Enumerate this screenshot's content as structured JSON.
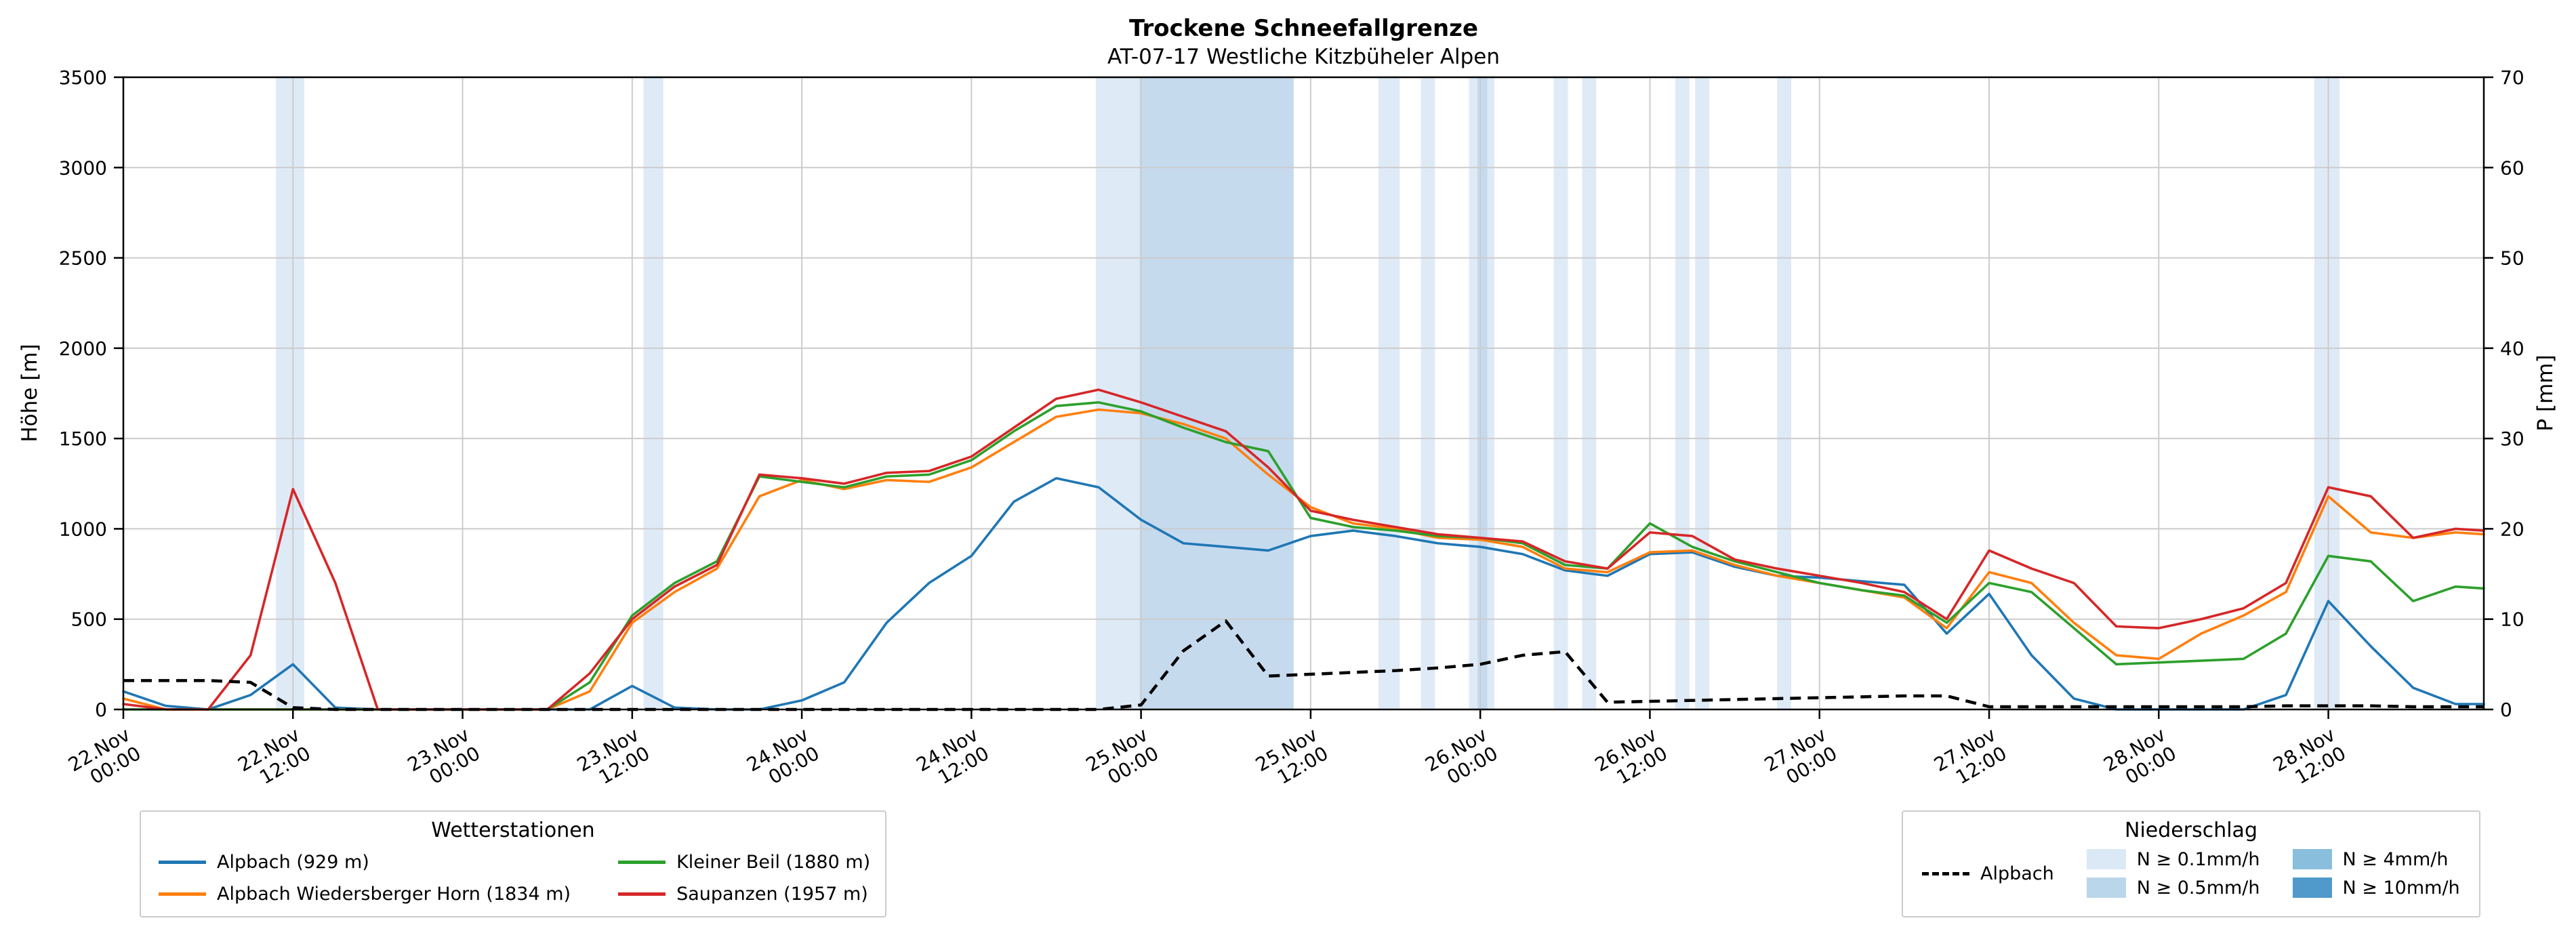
{
  "title": "Trockene Schneefallgrenze",
  "subtitle": "AT-07-17 Westliche Kitzbüheler Alpen",
  "axes": {
    "left_label": "Höhe [m]",
    "right_label": "P [mm]"
  },
  "legend_stations": {
    "title": "Wetterstationen",
    "items": [
      {
        "label": "Alpbach (929 m)",
        "color": "#1f77b4"
      },
      {
        "label": "Alpbach Wiedersberger Horn (1834 m)",
        "color": "#ff7f0e"
      },
      {
        "label": "Kleiner Beil (1880 m)",
        "color": "#2ca02c"
      },
      {
        "label": "Saupanzen (1957 m)",
        "color": "#d62728"
      }
    ]
  },
  "legend_precip": {
    "title": "Niederschlag",
    "line": {
      "label": "Alpbach",
      "color": "#000000"
    },
    "patches": [
      {
        "label": "N ≥ 0.1mm/h",
        "color": "#dbe9f6"
      },
      {
        "label": "N ≥ 0.5mm/h",
        "color": "#bad6eb"
      },
      {
        "label": "N ≥ 4mm/h",
        "color": "#89bedc"
      },
      {
        "label": "N ≥ 10mm/h",
        "color": "#4f9acb"
      }
    ]
  },
  "chart_data": {
    "type": "line",
    "title": "Trockene Schneefallgrenze",
    "subtitle": "AT-07-17 Westliche Kitzbüheler Alpen",
    "xlabel": "",
    "ylabel_left": "Höhe [m]",
    "ylabel_right": "P [mm]",
    "x_unit": "hours since 22.Nov 00:00",
    "x_range": [
      0,
      167
    ],
    "ylim_left": [
      0,
      3500
    ],
    "ylim_right": [
      0,
      70
    ],
    "grid": true,
    "left_ticks": [
      0,
      500,
      1000,
      1500,
      2000,
      2500,
      3000,
      3500
    ],
    "right_ticks": [
      0,
      10,
      20,
      30,
      40,
      50,
      60,
      70
    ],
    "x_ticks": [
      {
        "t": 0,
        "label": "22.Nov\n00:00"
      },
      {
        "t": 12,
        "label": "22.Nov\n12:00"
      },
      {
        "t": 24,
        "label": "23.Nov\n00:00"
      },
      {
        "t": 36,
        "label": "23.Nov\n12:00"
      },
      {
        "t": 48,
        "label": "24.Nov\n00:00"
      },
      {
        "t": 60,
        "label": "24.Nov\n12:00"
      },
      {
        "t": 72,
        "label": "25.Nov\n00:00"
      },
      {
        "t": 84,
        "label": "25.Nov\n12:00"
      },
      {
        "t": 96,
        "label": "26.Nov\n00:00"
      },
      {
        "t": 108,
        "label": "26.Nov\n12:00"
      },
      {
        "t": 120,
        "label": "27.Nov\n00:00"
      },
      {
        "t": 132,
        "label": "27.Nov\n12:00"
      },
      {
        "t": 144,
        "label": "28.Nov\n00:00"
      },
      {
        "t": 156,
        "label": "28.Nov\n12:00"
      }
    ],
    "x": [
      0,
      3,
      6,
      9,
      12,
      15,
      18,
      21,
      24,
      27,
      30,
      33,
      36,
      39,
      42,
      45,
      48,
      51,
      54,
      57,
      60,
      63,
      66,
      69,
      72,
      75,
      78,
      81,
      84,
      87,
      90,
      93,
      96,
      99,
      102,
      105,
      108,
      111,
      114,
      117,
      120,
      123,
      126,
      129,
      132,
      135,
      138,
      141,
      144,
      147,
      150,
      153,
      156,
      159,
      162,
      165,
      167
    ],
    "series": [
      {
        "name": "Alpbach (929 m)",
        "color": "#1f77b4",
        "axis": "left",
        "values": [
          100,
          20,
          0,
          80,
          250,
          10,
          0,
          0,
          0,
          0,
          0,
          0,
          130,
          10,
          0,
          0,
          50,
          150,
          480,
          700,
          850,
          1150,
          1280,
          1230,
          1050,
          920,
          900,
          880,
          960,
          990,
          960,
          920,
          900,
          860,
          770,
          740,
          860,
          870,
          790,
          740,
          730,
          710,
          690,
          420,
          640,
          300,
          60,
          0,
          0,
          0,
          0,
          80,
          600,
          350,
          120,
          30,
          30
        ]
      },
      {
        "name": "Alpbach Wiedersberger Horn (1834 m)",
        "color": "#ff7f0e",
        "axis": "left",
        "values": [
          60,
          0,
          0,
          0,
          0,
          0,
          0,
          0,
          0,
          0,
          0,
          100,
          480,
          650,
          780,
          1180,
          1270,
          1220,
          1270,
          1260,
          1340,
          1480,
          1620,
          1660,
          1640,
          1580,
          1500,
          1300,
          1120,
          1030,
          1000,
          950,
          940,
          900,
          780,
          760,
          870,
          880,
          800,
          740,
          700,
          660,
          620,
          450,
          760,
          700,
          480,
          300,
          280,
          420,
          520,
          650,
          1180,
          980,
          950,
          980,
          970
        ]
      },
      {
        "name": "Kleiner Beil (1880 m)",
        "color": "#2ca02c",
        "axis": "left",
        "values": [
          0,
          0,
          0,
          0,
          0,
          0,
          0,
          0,
          0,
          0,
          0,
          150,
          520,
          700,
          820,
          1290,
          1260,
          1230,
          1290,
          1300,
          1380,
          1540,
          1680,
          1700,
          1650,
          1560,
          1480,
          1430,
          1060,
          1010,
          990,
          960,
          950,
          920,
          800,
          780,
          1030,
          900,
          820,
          760,
          700,
          660,
          630,
          480,
          700,
          650,
          450,
          250,
          260,
          270,
          280,
          420,
          850,
          820,
          600,
          680,
          670
        ]
      },
      {
        "name": "Saupanzen (1957 m)",
        "color": "#d62728",
        "axis": "left",
        "values": [
          30,
          0,
          0,
          300,
          1220,
          700,
          0,
          0,
          0,
          0,
          0,
          200,
          500,
          680,
          800,
          1300,
          1280,
          1250,
          1310,
          1320,
          1400,
          1560,
          1720,
          1770,
          1700,
          1620,
          1540,
          1340,
          1100,
          1050,
          1010,
          970,
          950,
          930,
          820,
          780,
          980,
          960,
          830,
          780,
          740,
          700,
          650,
          500,
          880,
          780,
          700,
          460,
          450,
          500,
          560,
          700,
          1230,
          1180,
          950,
          1000,
          990
        ]
      }
    ],
    "precip_line": {
      "name": "Alpbach",
      "color": "#000000",
      "style": "dashed",
      "axis": "right",
      "values": [
        3.2,
        3.2,
        3.2,
        3.0,
        0.2,
        0,
        0,
        0,
        0,
        0,
        0,
        0,
        0,
        0,
        0,
        0,
        0,
        0,
        0,
        0,
        0,
        0,
        0,
        0,
        0.5,
        6.5,
        9.8,
        3.7,
        3.9,
        4.1,
        4.3,
        4.6,
        5.0,
        6.0,
        6.4,
        0.8,
        0.9,
        1.0,
        1.1,
        1.2,
        1.3,
        1.4,
        1.5,
        1.5,
        0.3,
        0.3,
        0.3,
        0.3,
        0.3,
        0.3,
        0.3,
        0.4,
        0.4,
        0.4,
        0.3,
        0.3,
        0.3
      ]
    },
    "precip_bands": [
      {
        "start": 10.8,
        "end": 12.8,
        "level": 1
      },
      {
        "start": 36.8,
        "end": 38.2,
        "level": 1
      },
      {
        "start": 68.8,
        "end": 71.9,
        "level": 1
      },
      {
        "start": 71.9,
        "end": 82.8,
        "level": 2
      },
      {
        "start": 88.8,
        "end": 90.3,
        "level": 1
      },
      {
        "start": 91.8,
        "end": 92.8,
        "level": 1
      },
      {
        "start": 95.2,
        "end": 97.0,
        "level": 1
      },
      {
        "start": 95.8,
        "end": 96.5,
        "level": 2
      },
      {
        "start": 101.2,
        "end": 102.2,
        "level": 1
      },
      {
        "start": 103.2,
        "end": 104.2,
        "level": 1
      },
      {
        "start": 109.8,
        "end": 110.8,
        "level": 1
      },
      {
        "start": 111.2,
        "end": 112.2,
        "level": 1
      },
      {
        "start": 117.0,
        "end": 118.0,
        "level": 1
      },
      {
        "start": 155.0,
        "end": 156.8,
        "level": 1
      }
    ],
    "band_colors": {
      "1": "#dfeaf7",
      "2": "#c6daee",
      "3": "#89bedc",
      "4": "#4f9acb"
    },
    "legend_position": "below"
  }
}
